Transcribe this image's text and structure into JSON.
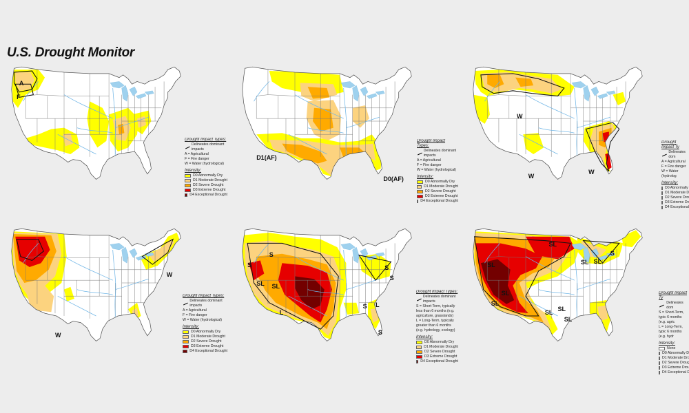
{
  "title": "U.S. Drought Monitor",
  "colors": {
    "none": "#ffffff",
    "d0": "#ffff00",
    "d1": "#fcd37f",
    "d2": "#ffaa00",
    "d3": "#e60000",
    "d4": "#730000",
    "water": "#9fd1ee",
    "river": "#6fb5e6",
    "border": "#555555"
  },
  "panels": [
    {
      "id": "p1",
      "impact_title": "Drought Impact Types:",
      "impacts": [
        {
          "symbol": "line",
          "text": "Delineates dominant impacts"
        },
        {
          "symbol": "",
          "text": "A = Agricultural"
        },
        {
          "symbol": "",
          "text": "F = Fire danger"
        },
        {
          "symbol": "",
          "text": "W = Water (hydrological)"
        }
      ],
      "intensity_title": "Intensity:",
      "intensity": [
        {
          "color": "#ffff00",
          "text": "D0 Abnormally Dry"
        },
        {
          "color": "#fcd37f",
          "text": "D1 Moderate Drought"
        },
        {
          "color": "#ffaa00",
          "text": "D2 Severe Drought"
        },
        {
          "color": "#e60000",
          "text": "D3 Extreme Drought"
        },
        {
          "color": "#730000",
          "text": "D4 Exceptional Drought"
        }
      ],
      "letters": [
        "A",
        "F"
      ]
    },
    {
      "id": "p2",
      "impact_title": "Drought Impact Types:",
      "impacts": [
        {
          "symbol": "line",
          "text": "Delineates dominant impacts"
        },
        {
          "symbol": "",
          "text": "A = Agricultural"
        },
        {
          "symbol": "",
          "text": "F = Fire danger"
        },
        {
          "symbol": "",
          "text": "W = Water (hydrological)"
        }
      ],
      "intensity_title": "Intensity:",
      "intensity": [
        {
          "color": "#ffff00",
          "text": "D0 Abnormally Dry"
        },
        {
          "color": "#fcd37f",
          "text": "D1 Moderate Drought"
        },
        {
          "color": "#ffaa00",
          "text": "D2 Severe Drought"
        },
        {
          "color": "#e60000",
          "text": "D3 Extreme Drought"
        },
        {
          "color": "#730000",
          "text": "D4 Exceptional Drought"
        }
      ],
      "letters": [
        "D1(AF)",
        "D0(AF)"
      ]
    },
    {
      "id": "p3",
      "impact_title": "Drought Impact Ty",
      "impacts": [
        {
          "symbol": "line",
          "text": "Delineates dom"
        },
        {
          "symbol": "",
          "text": "A = Agricultural"
        },
        {
          "symbol": "",
          "text": "F = Fire danger"
        },
        {
          "symbol": "",
          "text": "W = Water (hydrolog"
        }
      ],
      "intensity_title": "Intensity:",
      "intensity": [
        {
          "color": "#ffff00",
          "text": "D0 Abnormally Dry"
        },
        {
          "color": "#fcd37f",
          "text": "D1 Moderate Droug"
        },
        {
          "color": "#ffaa00",
          "text": "D2 Severe Drought"
        },
        {
          "color": "#e60000",
          "text": "D3 Extreme Drought"
        },
        {
          "color": "#730000",
          "text": "D4 Exceptional Dro"
        }
      ],
      "letters": [
        "W",
        "W",
        "W"
      ]
    },
    {
      "id": "p4",
      "impact_title": "Drought Impact Types:",
      "impacts": [
        {
          "symbol": "line",
          "text": "Delineates dominant impacts"
        },
        {
          "symbol": "",
          "text": "A = Agricultural"
        },
        {
          "symbol": "",
          "text": "F = Fire danger"
        },
        {
          "symbol": "",
          "text": "W = Water (hydrological)"
        }
      ],
      "intensity_title": "Intensity:",
      "intensity": [
        {
          "color": "#ffff00",
          "text": "D0 Abnormally Dry"
        },
        {
          "color": "#fcd37f",
          "text": "D1 Moderate Drought"
        },
        {
          "color": "#ffaa00",
          "text": "D2 Severe Drought"
        },
        {
          "color": "#e60000",
          "text": "D3 Extreme Drought"
        },
        {
          "color": "#730000",
          "text": "D4 Exceptional Drought"
        }
      ],
      "letters": [
        "W",
        "W"
      ]
    },
    {
      "id": "p5",
      "impact_title": "Drought Impact Types:",
      "impacts": [
        {
          "symbol": "line",
          "text": "Delineates dominant impacts"
        },
        {
          "symbol": "",
          "text": "S = Short-Term, typically less than 6 months (e.g. agriculture, grasslands)"
        },
        {
          "symbol": "",
          "text": "L = Long-Term, typically greater than 6 months (e.g. hydrology, ecology)"
        }
      ],
      "intensity_title": "Intensity:",
      "intensity": [
        {
          "color": "#ffff00",
          "text": "D0 Abnormally Dry"
        },
        {
          "color": "#fcd37f",
          "text": "D1 Moderate Drought"
        },
        {
          "color": "#ffaa00",
          "text": "D2 Severe Drought"
        },
        {
          "color": "#e60000",
          "text": "D3 Extreme Drought"
        },
        {
          "color": "#730000",
          "text": "D4 Exceptional Drought"
        }
      ],
      "letters": [
        "S",
        "S",
        "SL",
        "SL",
        "L",
        "S",
        "S",
        "S",
        "L",
        "S"
      ]
    },
    {
      "id": "p6",
      "impact_title": "Drought Impact Ty",
      "impacts": [
        {
          "symbol": "line",
          "text": "Delineates dom"
        },
        {
          "symbol": "",
          "text": "S = Short-Term, typic 6 months (e.g. agric"
        },
        {
          "symbol": "",
          "text": "L = Long-Term, typic 6 months (e.g. hydr"
        }
      ],
      "intensity_title": "Intensity:",
      "intensity": [
        {
          "color": "#ffffff",
          "text": "None"
        },
        {
          "color": "#ffff00",
          "text": "D0 Abnormally D"
        },
        {
          "color": "#fcd37f",
          "text": "D1 Moderate Dro"
        },
        {
          "color": "#ffaa00",
          "text": "D2 Severe Droug"
        },
        {
          "color": "#e60000",
          "text": "D3 Extreme Droug"
        },
        {
          "color": "#730000",
          "text": "D4 Exceptional D"
        }
      ],
      "letters": [
        "SL",
        "SL",
        "SL",
        "SL",
        "SL",
        "SL",
        "SL",
        "S",
        "SL",
        "SL"
      ]
    }
  ]
}
